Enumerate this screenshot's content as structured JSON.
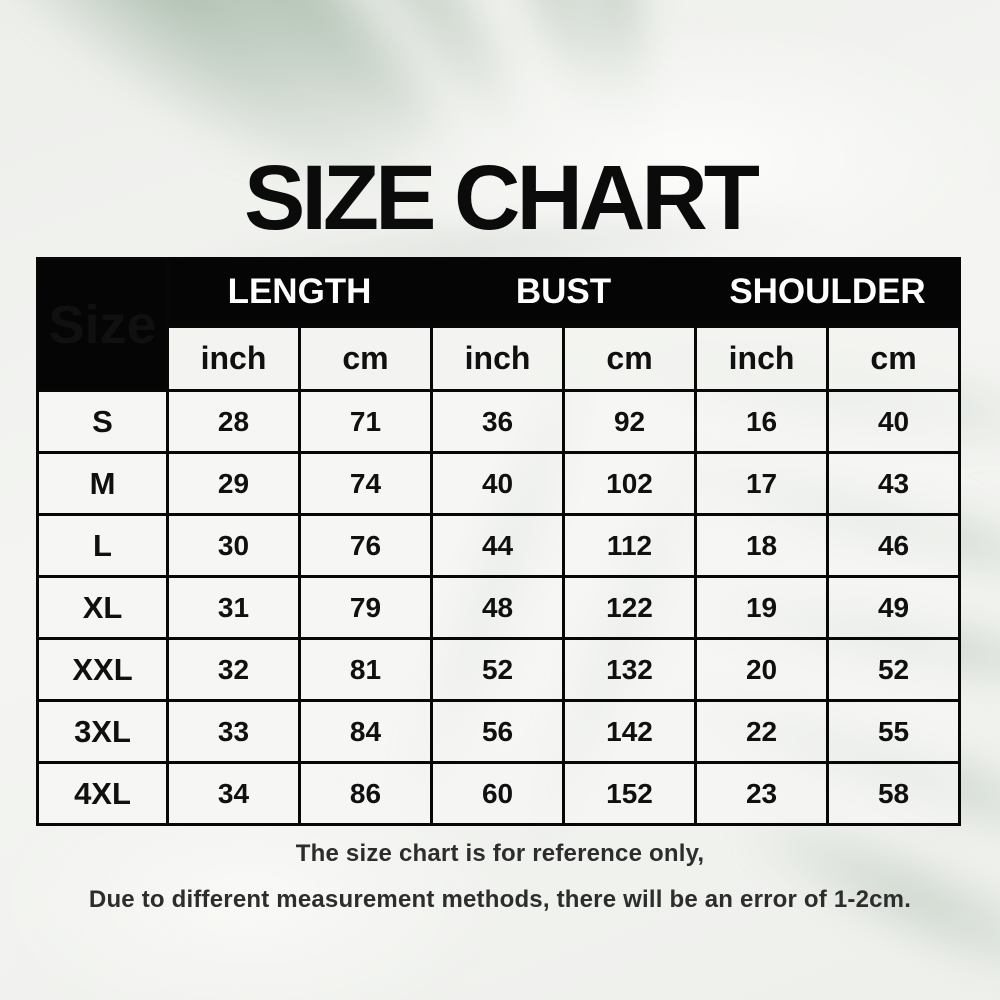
{
  "page": {
    "title": "SIZE CHART",
    "notes": [
      "The size chart is for reference only,",
      "Due to different measurement methods, there will be an error of 1-2cm."
    ]
  },
  "colors": {
    "header_bg": "#050505",
    "header_text": "#ffffff",
    "body_text": "#101010",
    "leaf_green": "#a3b6a6",
    "background": "#f2f3f0"
  },
  "chart_data": {
    "type": "table",
    "title": "SIZE CHART",
    "corner_label": "Size",
    "column_groups": [
      "LENGTH",
      "BUST",
      "SHOULDER"
    ],
    "unit_headers": [
      "inch",
      "cm",
      "inch",
      "cm",
      "inch",
      "cm"
    ],
    "rows": [
      {
        "size": "S",
        "values": [
          28,
          71,
          36,
          92,
          16,
          40
        ]
      },
      {
        "size": "M",
        "values": [
          29,
          74,
          40,
          102,
          17,
          43
        ]
      },
      {
        "size": "L",
        "values": [
          30,
          76,
          44,
          112,
          18,
          46
        ]
      },
      {
        "size": "XL",
        "values": [
          31,
          79,
          48,
          122,
          19,
          49
        ]
      },
      {
        "size": "XXL",
        "values": [
          32,
          81,
          52,
          132,
          20,
          52
        ]
      },
      {
        "size": "3XL",
        "values": [
          33,
          84,
          56,
          142,
          22,
          55
        ]
      },
      {
        "size": "4XL",
        "values": [
          34,
          86,
          60,
          152,
          23,
          58
        ]
      }
    ],
    "notes": [
      "The size chart is for reference only,",
      "Due to different measurement methods, there will be an error of 1-2cm."
    ]
  }
}
